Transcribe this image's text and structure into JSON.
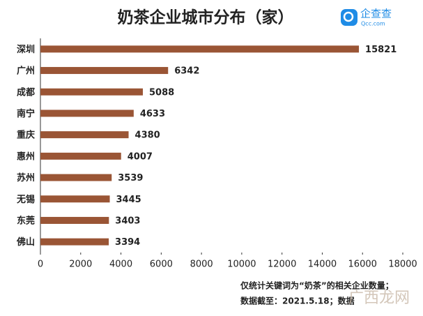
{
  "chart_data": {
    "type": "bar",
    "orientation": "horizontal",
    "title": "奶茶企业城市分布（家）",
    "categories": [
      "深圳",
      "广州",
      "成都",
      "南宁",
      "重庆",
      "惠州",
      "苏州",
      "无锡",
      "东莞",
      "佛山"
    ],
    "values": [
      15821,
      6342,
      5088,
      4633,
      4380,
      4007,
      3539,
      3445,
      3403,
      3394
    ],
    "color": "#9a5535",
    "xlim": [
      0,
      18000
    ],
    "xticks": [
      0,
      2000,
      4000,
      6000,
      8000,
      10000,
      12000,
      14000,
      16000,
      18000
    ],
    "notes": [
      "仅统计关键词为“奶茶”的相关企业数量；",
      "数据截至：2021.5.18；数据"
    ]
  },
  "logo": {
    "name": "企查查",
    "site": "Qcc.com"
  },
  "watermark": "广西龙网"
}
